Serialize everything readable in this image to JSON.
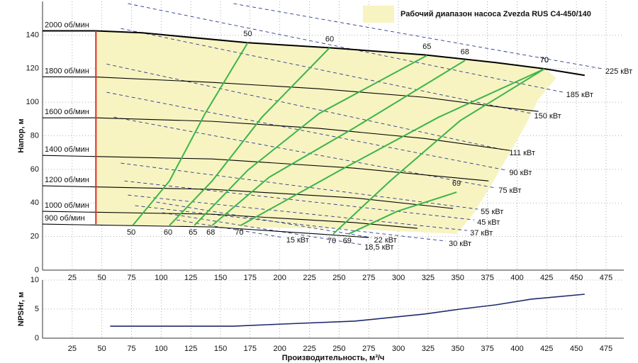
{
  "chart_data": [
    {
      "type": "pump-curves",
      "ylabel": "Напор, м",
      "xlim": [
        0,
        490
      ],
      "ylim": [
        0,
        160
      ],
      "xticks": [
        25,
        50,
        75,
        100,
        125,
        150,
        175,
        200,
        225,
        250,
        275,
        300,
        325,
        350,
        375,
        400,
        425,
        450,
        475
      ],
      "yticks": [
        0,
        20,
        40,
        60,
        80,
        100,
        120,
        140
      ],
      "grid": true,
      "operating_range": {
        "name": "Рабочий диапазон насоса Zvezda RUS C4-450/140",
        "color": "#f7f4c2",
        "x": [
          45,
          84,
          173,
          242,
          322,
          382,
          424,
          433,
          418,
          406,
          382,
          364,
          349,
          263,
          143,
          45
        ],
        "y": [
          142.5,
          141.3,
          135.4,
          132.4,
          128.2,
          123.6,
          119.8,
          114.4,
          101.7,
          84.8,
          55.3,
          34.2,
          21.5,
          24.5,
          25.7,
          27.4
        ]
      },
      "min_flow_line": {
        "color": "#e02b2b",
        "x": [
          45,
          45
        ],
        "y": [
          27.4,
          142.5
        ]
      },
      "speed_curves": [
        {
          "name": "2000 об/мин",
          "color": "#000000",
          "x": [
            0,
            45,
            84,
            173,
            242,
            322,
            382,
            424,
            457
          ],
          "y": [
            142.5,
            142.5,
            141.3,
            135.4,
            132.4,
            128.2,
            123.6,
            119.8,
            116
          ]
        },
        {
          "name": "1800 об/мин",
          "color": "#000000",
          "x": [
            0,
            45,
            143,
            233,
            322,
            382,
            418
          ],
          "y": [
            115.1,
            115,
            111.8,
            108,
            102.9,
            97.4,
            94.5
          ]
        },
        {
          "name": "1600 об/мин",
          "color": "#000000",
          "x": [
            0,
            45,
            143,
            233,
            322,
            394
          ],
          "y": [
            90.7,
            90.7,
            88.6,
            84.4,
            78.4,
            71.3
          ]
        },
        {
          "name": "1400 об/мин",
          "color": "#000000",
          "x": [
            0,
            143,
            263,
            376
          ],
          "y": [
            68.3,
            66.2,
            60.7,
            53.1
          ]
        },
        {
          "name": "1200 об/мин",
          "color": "#000000",
          "x": [
            0,
            143,
            263,
            346
          ],
          "y": [
            50.2,
            48.1,
            43,
            36.7
          ]
        },
        {
          "name": "1000 об/мин",
          "color": "#000000",
          "x": [
            0,
            143,
            263,
            316
          ],
          "y": [
            35,
            33.3,
            28.3,
            24.9
          ]
        },
        {
          "name": "900 об/мин",
          "color": "#000000",
          "x": [
            0,
            143,
            233,
            275
          ],
          "y": [
            27.4,
            25.7,
            21.5,
            19.4
          ]
        }
      ],
      "efficiency_curves": [
        {
          "name": "50",
          "color": "#3cb54a",
          "x": [
            76,
            107,
            137,
            173
          ],
          "y": [
            26.6,
            53.1,
            93.2,
            135.4
          ]
        },
        {
          "name": "60",
          "color": "#3cb54a",
          "x": [
            107,
            143,
            185,
            242
          ],
          "y": [
            26.6,
            53.1,
            91.1,
            132.4
          ]
        },
        {
          "name": "65",
          "color": "#3cb54a",
          "x": [
            128,
            173,
            233,
            324
          ],
          "y": [
            26.6,
            59.5,
            93.2,
            127.8
          ]
        },
        {
          "name": "68",
          "color": "#3cb54a",
          "x": [
            143,
            191,
            263,
            356
          ],
          "y": [
            26.6,
            55.3,
            84.8,
            124.8
          ]
        },
        {
          "name": "70",
          "color": "#3cb54a",
          "x": [
            167,
            251,
            334,
            423
          ],
          "y": [
            26.6,
            59.5,
            91.1,
            119.8
          ]
        },
        {
          "name": "70",
          "color": "#3cb54a",
          "x": [
            245,
            293,
            352,
            423
          ],
          "y": [
            21.5,
            53.1,
            89,
            119.8
          ]
        },
        {
          "name": "69",
          "color": "#3cb54a",
          "x": [
            258,
            299,
            349
          ],
          "y": [
            21.5,
            35,
            46.4
          ]
        }
      ],
      "power_lines": [
        {
          "name": "225 кВт",
          "color": "#2b3a8c",
          "x": [
            161,
            472
          ],
          "y": [
            158.7,
            119.9
          ]
        },
        {
          "name": "185 кВт",
          "color": "#2b3a8c",
          "x": [
            72,
            439
          ],
          "y": [
            158.7,
            105.9
          ]
        },
        {
          "name": "150 кВт",
          "color": "#2b3a8c",
          "x": [
            66,
            412
          ],
          "y": [
            143.9,
            93.3
          ]
        },
        {
          "name": "111 кВт",
          "color": "#2b3a8c",
          "x": [
            54,
            391
          ],
          "y": [
            122.7,
            71.3
          ]
        },
        {
          "name": "90 кВт",
          "color": "#2b3a8c",
          "x": [
            54,
            391
          ],
          "y": [
            105.9,
            59.5
          ]
        },
        {
          "name": "75 кВт",
          "color": "#2b3a8c",
          "x": [
            60,
            382
          ],
          "y": [
            91.1,
            48.9
          ]
        },
        {
          "name": "55 кВт",
          "color": "#2b3a8c",
          "x": [
            66,
            367
          ],
          "y": [
            63.7,
            36.3
          ]
        },
        {
          "name": "45 кВт",
          "color": "#2b3a8c",
          "x": [
            69,
            364
          ],
          "y": [
            53.1,
            29.9
          ]
        },
        {
          "name": "37 кВт",
          "color": "#2b3a8c",
          "x": [
            72,
            358
          ],
          "y": [
            44.7,
            23.6
          ]
        },
        {
          "name": "30 кВт",
          "color": "#2b3a8c",
          "x": [
            78,
            340
          ],
          "y": [
            38.4,
            17.3
          ]
        },
        {
          "name": "22 кВт",
          "color": "#2b3a8c",
          "x": [
            96,
            277
          ],
          "y": [
            40.5,
            19.4
          ]
        },
        {
          "name": "18,5 кВт",
          "color": "#2b3a8c",
          "x": [
            101,
            269
          ],
          "y": [
            34.2,
            15.2
          ]
        },
        {
          "name": "15 кВт",
          "color": "#2b3a8c",
          "x": [
            113,
            203
          ],
          "y": [
            29.9,
            19.4
          ]
        }
      ]
    },
    {
      "type": "line",
      "ylabel": "NPSHr, м",
      "xlabel": "Производительность, м³/ч",
      "xlim": [
        0,
        490
      ],
      "ylim": [
        0,
        10
      ],
      "xticks": [
        25,
        50,
        75,
        100,
        125,
        150,
        175,
        200,
        225,
        250,
        275,
        300,
        325,
        350,
        375,
        400,
        425,
        450,
        475
      ],
      "yticks": [
        0,
        5,
        10
      ],
      "grid": true,
      "series": [
        {
          "color": "#1f2a6b",
          "x": [
            57,
            161,
            203,
            263,
            322,
            352,
            382,
            412,
            457
          ],
          "y": [
            2.07,
            2.07,
            2.44,
            2.93,
            4.15,
            5,
            5.73,
            6.71,
            7.56
          ]
        }
      ]
    }
  ]
}
